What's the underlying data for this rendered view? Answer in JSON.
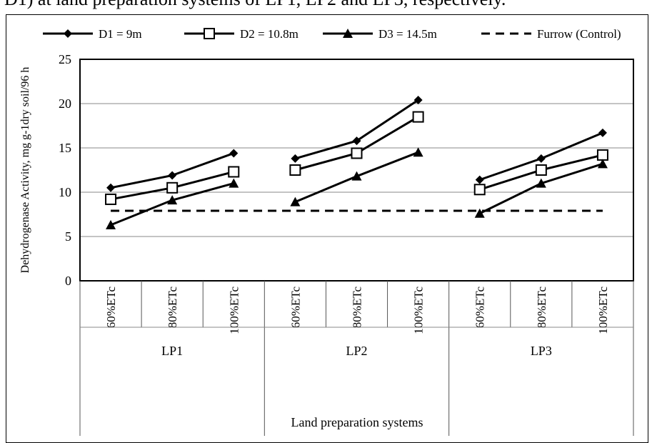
{
  "caption": "D1) at land preparation systems of LP1, LP2 and LP3, respectively.",
  "chart_data": {
    "type": "line",
    "ylabel": "Dehydrogenase Activity, mg g-1dry soil/96 h",
    "xlabel": "Land preparation systems",
    "ylim": [
      0,
      25
    ],
    "yticks": [
      "0",
      "5",
      "10",
      "15",
      "20",
      "25"
    ],
    "grid": true,
    "legend_position": "top",
    "categories": [
      "60%ETc",
      "80%ETc",
      "100%ETc",
      "60%ETc",
      "80%ETc",
      "100%ETc",
      "60%ETc",
      "80%ETc",
      "100%ETc"
    ],
    "groups": [
      "LP1",
      "LP2",
      "LP3"
    ],
    "series": [
      {
        "name": "D1 = 9m",
        "marker": "diamond",
        "values": [
          10.5,
          11.9,
          14.4,
          13.8,
          15.8,
          20.4,
          11.4,
          13.8,
          16.7
        ]
      },
      {
        "name": "D2 = 10.8m",
        "marker": "square",
        "values": [
          9.2,
          10.5,
          12.3,
          12.5,
          14.4,
          18.5,
          10.3,
          12.5,
          14.2
        ]
      },
      {
        "name": "D3 = 14.5m",
        "marker": "triangle",
        "values": [
          6.3,
          9.1,
          11.0,
          8.9,
          11.8,
          14.5,
          7.6,
          11.0,
          13.2
        ]
      },
      {
        "name": "Furrow (Control)",
        "marker": "none",
        "dashed": true,
        "values": [
          7.9,
          7.9,
          7.9,
          7.9,
          7.9,
          7.9,
          7.9,
          7.9,
          7.9
        ]
      }
    ]
  }
}
